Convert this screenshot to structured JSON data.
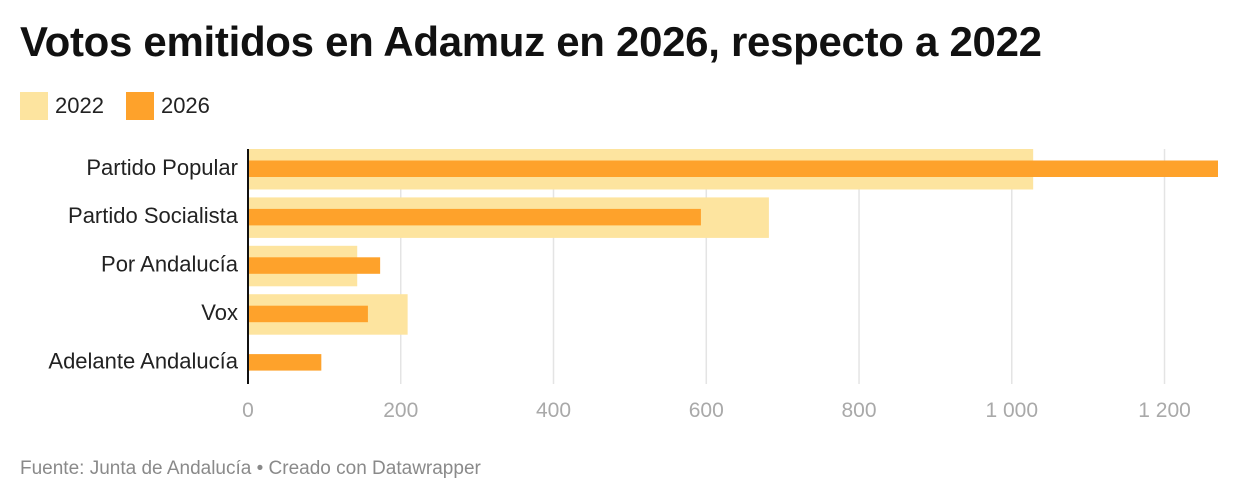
{
  "title": "Votos emitidos en Adamuz en 2026, respecto a 2022",
  "source": "Fuente: Junta de Andalucía • Creado con Datawrapper",
  "colors": {
    "y2022": "#fde49f",
    "y2026": "#fea22b",
    "grid": "#e4e4e4",
    "axis": "#111111",
    "tick": "#a9a9a9"
  },
  "chart_data": {
    "type": "bar",
    "orientation": "horizontal",
    "categories": [
      "Partido Popular",
      "Partido Socialista",
      "Por Andalucía",
      "Vox",
      "Adelante Andalucía"
    ],
    "series": [
      {
        "name": "2022",
        "values": [
          1028,
          682,
          143,
          209,
          0
        ]
      },
      {
        "name": "2026",
        "values": [
          1270,
          593,
          173,
          157,
          96
        ]
      }
    ],
    "xlim": [
      0,
      1270
    ],
    "xticks": [
      0,
      200,
      400,
      600,
      800,
      1000,
      1200
    ],
    "xtick_labels": [
      "0",
      "200",
      "400",
      "600",
      "800",
      "1 000",
      "1 200"
    ],
    "grid": true,
    "legend": "top-left"
  }
}
